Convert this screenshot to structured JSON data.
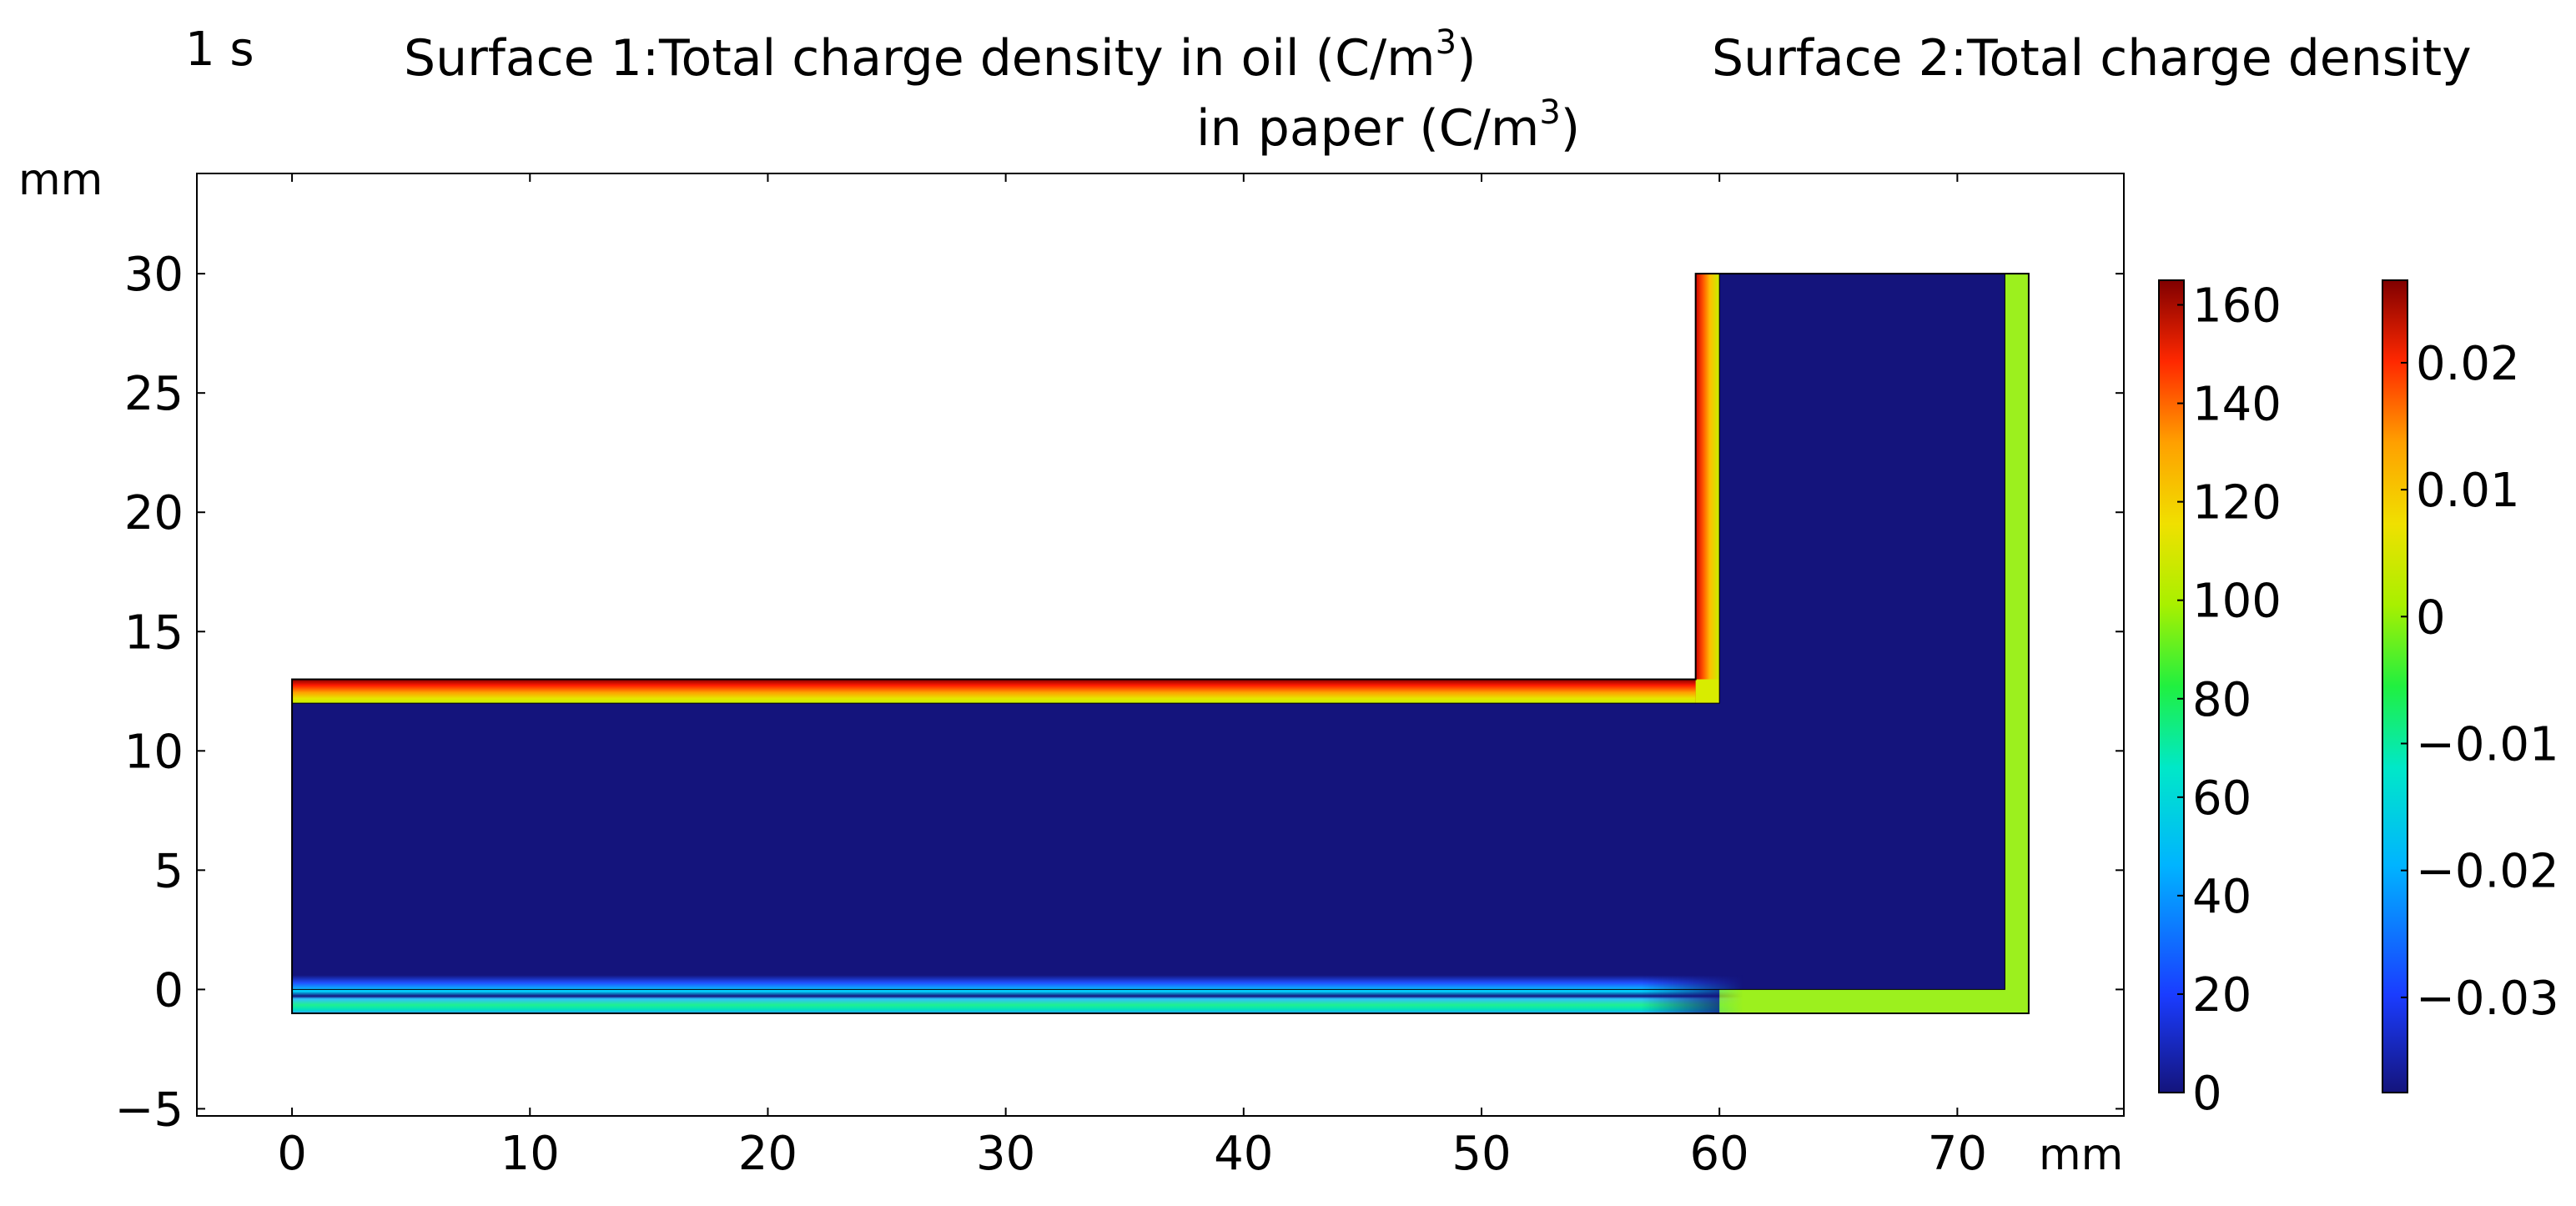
{
  "time_label": "1 s",
  "title": {
    "line1": "Surface 1:Total charge density in oil (C/m",
    "line1_sup": "3",
    "line1_end": ")",
    "line1_right": "Surface 2:Total charge density",
    "line2": "in paper (C/m",
    "line2_sup": "3",
    "line2_end": ")"
  },
  "colors": {
    "field": "#14147c",
    "frame": "#000000",
    "paper": "#9cf01e"
  },
  "chart_data": {
    "type": "heatmap",
    "xlabel": "mm",
    "ylabel": "mm",
    "xlim": [
      -4,
      77
    ],
    "ylim": [
      -5.3,
      34.2
    ],
    "x_ticks": [
      0,
      10,
      20,
      30,
      40,
      50,
      60,
      70
    ],
    "y_ticks": [
      -5,
      0,
      5,
      10,
      15,
      20,
      25,
      30
    ],
    "colorbars": [
      {
        "surface": "Surface 1 (oil)",
        "range": [
          0,
          165
        ],
        "ticks": [
          0,
          20,
          40,
          60,
          80,
          100,
          120,
          140,
          160
        ],
        "tick_labels": [
          "0",
          "20",
          "40",
          "60",
          "80",
          "100",
          "120",
          "140",
          "160"
        ],
        "colormap": "rainbow"
      },
      {
        "surface": "Surface 2 (paper)",
        "range": [
          -0.0375,
          0.0265
        ],
        "ticks": [
          -0.03,
          -0.02,
          -0.01,
          0,
          0.01,
          0.02
        ],
        "tick_labels": [
          "−0.03",
          "−0.02",
          "−0.01",
          "0",
          "0.01",
          "0.02"
        ],
        "colormap": "rainbow"
      }
    ],
    "regions": [
      {
        "name": "oil-domain-bulk",
        "x": [
          0,
          72
        ],
        "y": [
          -1,
          30
        ],
        "value": 0
      },
      {
        "name": "paper-insulation",
        "x": [
          0,
          73
        ],
        "y": [
          -1,
          30
        ],
        "value": 0.0
      }
    ],
    "layers": [
      {
        "name": "oil-top-layer",
        "x": [
          0,
          59
        ],
        "y": [
          12,
          13
        ],
        "gradient": "top-red-to-bottom-yellow"
      },
      {
        "name": "oil-vertical-layer",
        "x": [
          59,
          60
        ],
        "y": [
          12,
          30
        ],
        "gradient": "left-red-to-right-yellow"
      },
      {
        "name": "oil-bottom-layer",
        "x": [
          0,
          60
        ],
        "y": [
          -1,
          0.5
        ],
        "gradient": "blue-green-cyan"
      },
      {
        "name": "paper-bottom-strip",
        "x": [
          60,
          73
        ],
        "y": [
          -1,
          0
        ],
        "value": 0.0
      },
      {
        "name": "paper-right-strip",
        "x": [
          72,
          73
        ],
        "y": [
          -1,
          30
        ],
        "value": 0.0
      }
    ]
  }
}
